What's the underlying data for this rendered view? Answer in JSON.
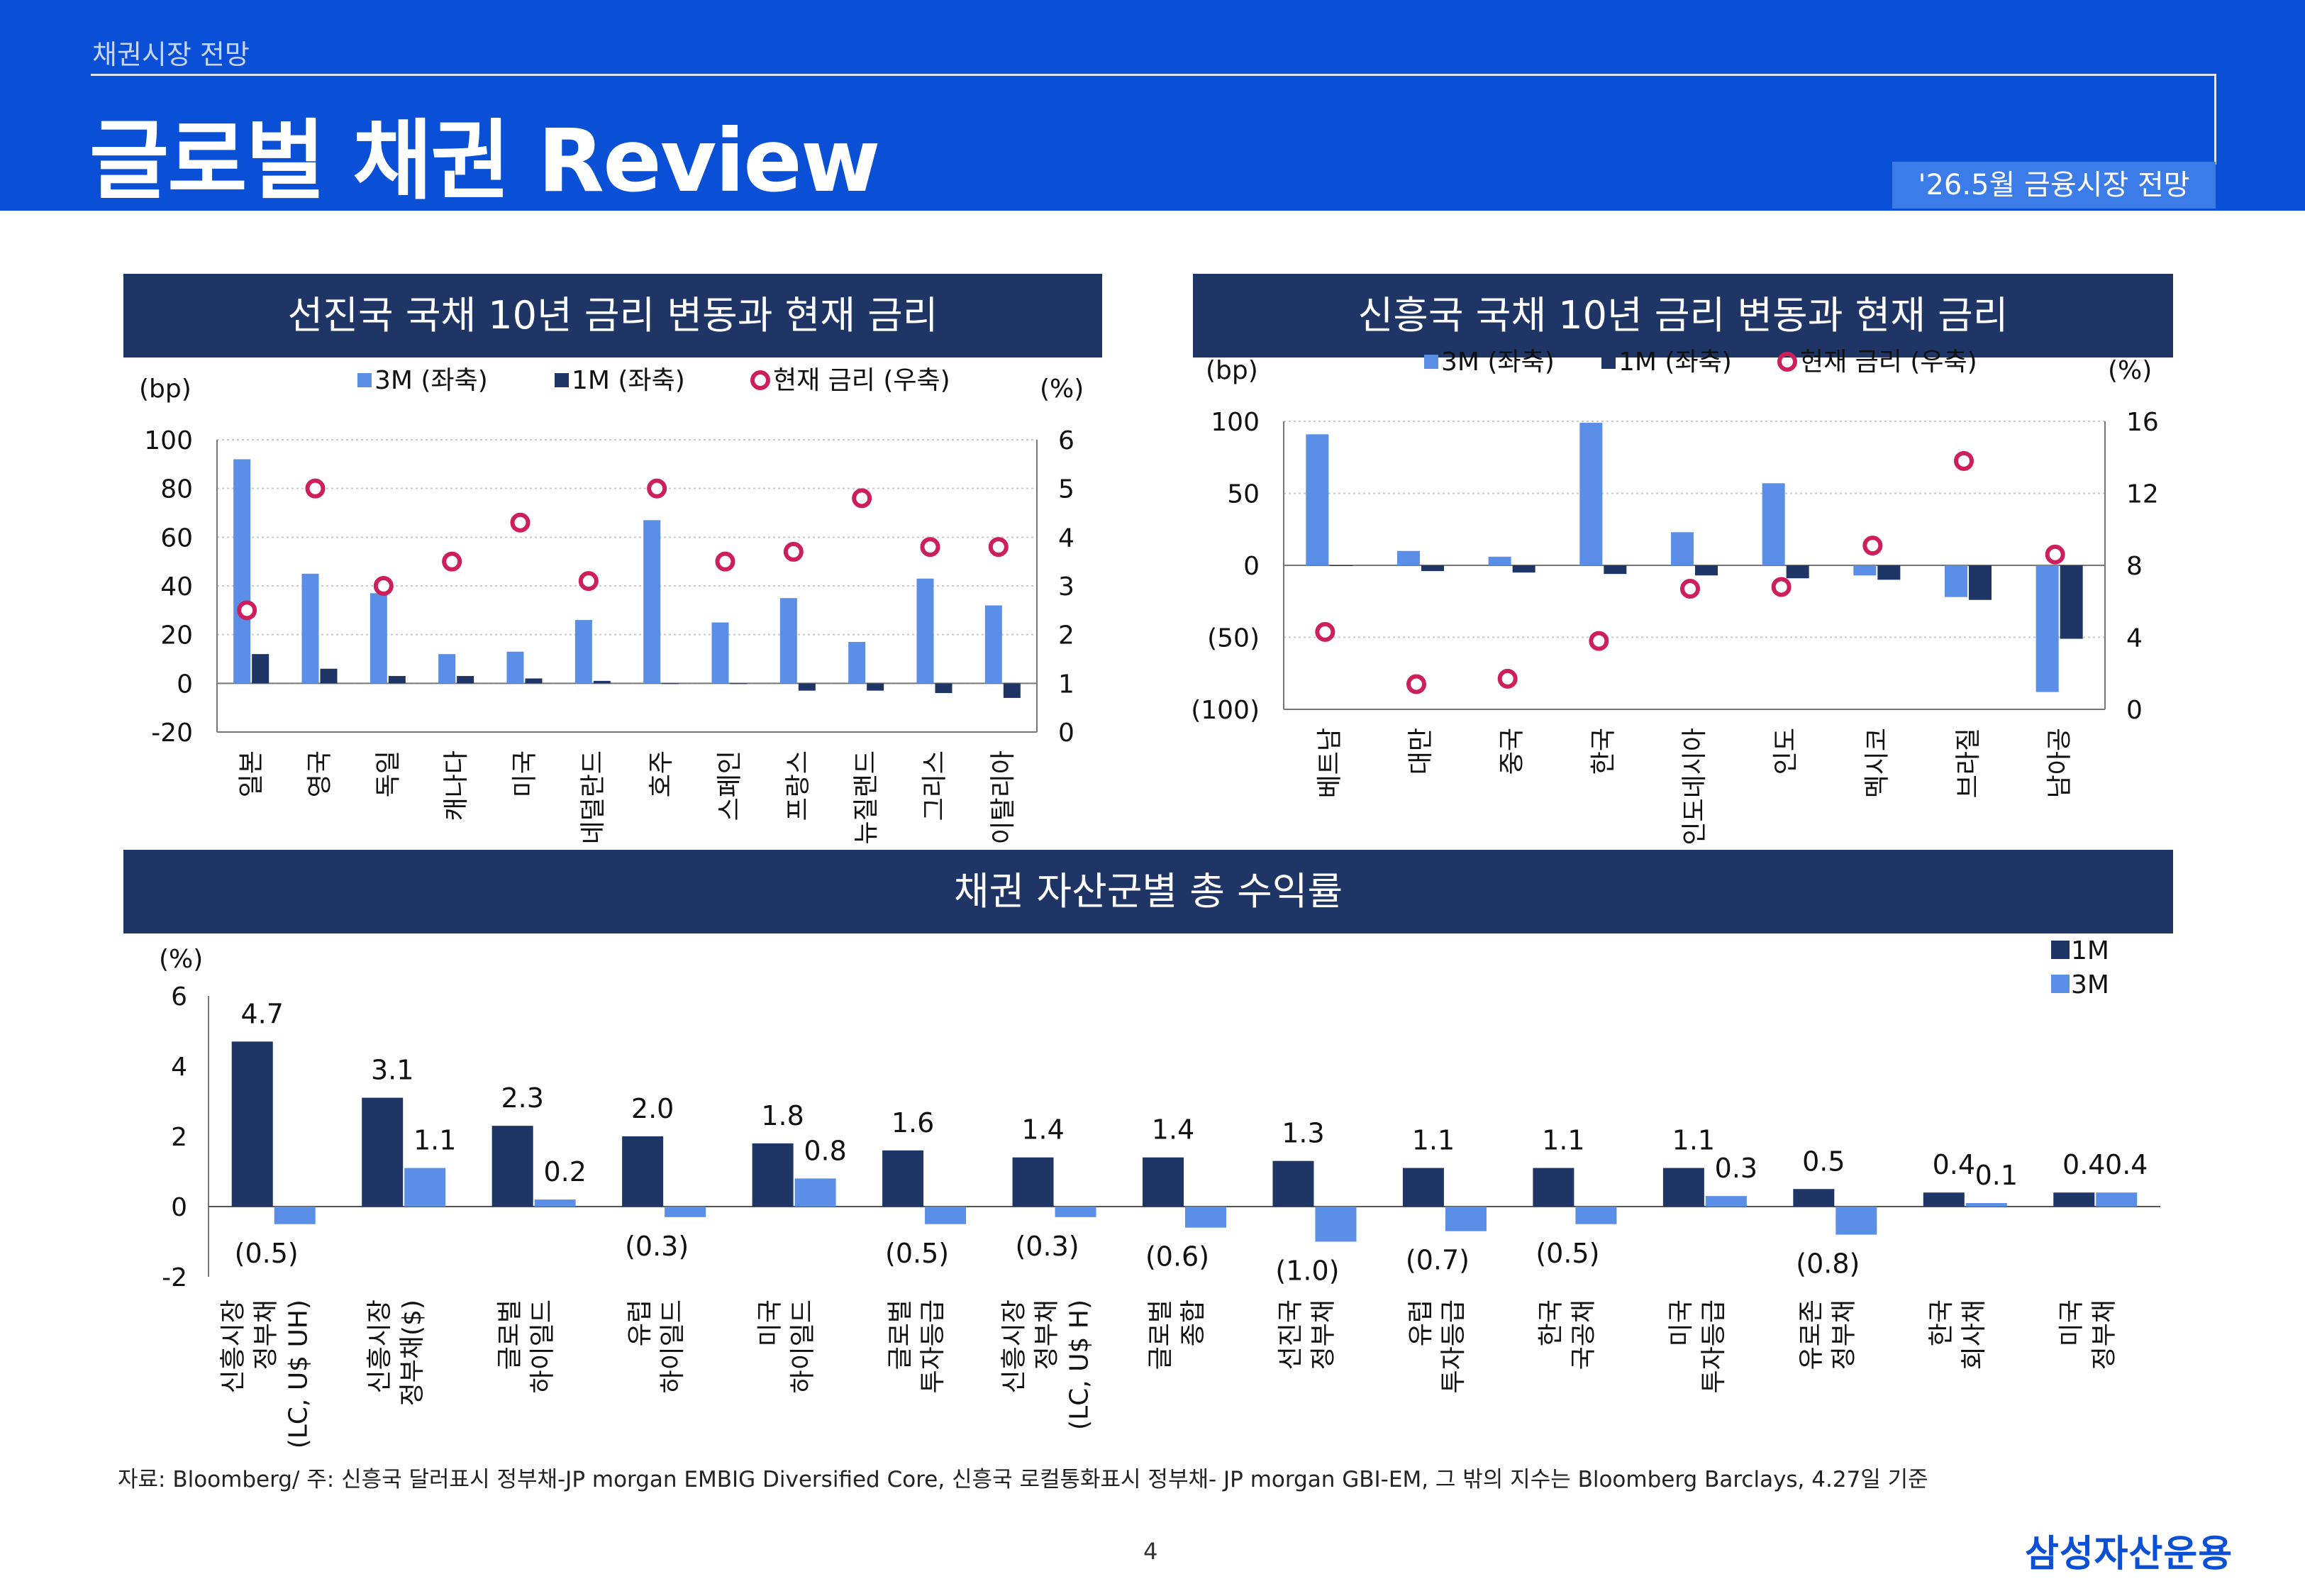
{
  "header": {
    "section": "채권시장 전망",
    "title": "글로벌 채권 Review",
    "badge": "'26.5월 금융시장 전망"
  },
  "colors": {
    "primary": "#0a50d6",
    "navy": "#1f3566",
    "bar_light": "#5b8ee6",
    "bar_dark": "#1f3566",
    "marker": "#cc1f5c"
  },
  "chart_data": [
    {
      "type": "bar",
      "title": "선진국 국채 10년 금리 변동과 현재 금리",
      "ylabel_left": "(bp)",
      "ylabel_right": "(%)",
      "ylim_left": [
        -20,
        100
      ],
      "yticks_left": [
        "100",
        "80",
        "60",
        "40",
        "20",
        "0",
        "-20"
      ],
      "ylim_right": [
        0,
        6
      ],
      "yticks_right": [
        "6",
        "5",
        "4",
        "3",
        "2",
        "1",
        "0"
      ],
      "legend": [
        "3M (좌축)",
        "1M (좌축)",
        "현재 금리 (우축)"
      ],
      "categories": [
        "일본",
        "영국",
        "독일",
        "캐나다",
        "미국",
        "네덜란드",
        "호주",
        "스페인",
        "프랑스",
        "뉴질랜드",
        "그리스",
        "이탈리아"
      ],
      "series": [
        {
          "name": "3M (좌축)",
          "values": [
            92,
            45,
            37,
            12,
            13,
            26,
            67,
            25,
            35,
            17,
            43,
            32
          ]
        },
        {
          "name": "1M (좌축)",
          "values": [
            12,
            6,
            3,
            3,
            2,
            1,
            0,
            0,
            -3,
            -3,
            -4,
            -6
          ]
        },
        {
          "name": "현재 금리 (우축)",
          "values": [
            2.5,
            5.0,
            3.0,
            3.5,
            4.3,
            3.1,
            5.0,
            3.5,
            3.7,
            4.8,
            3.8,
            3.8
          ]
        }
      ]
    },
    {
      "type": "bar",
      "title": "신흥국 국채 10년 금리 변동과 현재 금리",
      "ylabel_left": "(bp)",
      "ylabel_right": "(%)",
      "ylim_left": [
        -100,
        100
      ],
      "yticks_left": [
        "100",
        "50",
        "0",
        "(50)",
        "(100)"
      ],
      "ylim_right": [
        0,
        16
      ],
      "yticks_right": [
        "16",
        "12",
        "8",
        "4",
        "0"
      ],
      "legend": [
        "3M (좌축)",
        "1M (좌축)",
        "현재 금리 (우축)"
      ],
      "categories": [
        "베트남",
        "대만",
        "중국",
        "한국",
        "인도네시아",
        "인도",
        "멕시코",
        "브라질",
        "남아공"
      ],
      "series": [
        {
          "name": "3M (좌축)",
          "values": [
            91,
            10,
            6,
            99,
            23,
            57,
            -7,
            -22,
            -88
          ]
        },
        {
          "name": "1M (좌축)",
          "values": [
            0,
            -4,
            -5,
            -6,
            -7,
            -9,
            -10,
            -24,
            -51
          ]
        },
        {
          "name": "현재 금리 (우축)",
          "values": [
            4.3,
            1.4,
            1.7,
            3.8,
            6.7,
            6.8,
            9.1,
            13.8,
            8.6
          ]
        }
      ]
    },
    {
      "type": "bar",
      "title": "채권 자산군별 총 수익률",
      "ylabel": "(%)",
      "ylim": [
        -2,
        6
      ],
      "yticks": [
        "6",
        "4",
        "2",
        "0",
        "-2"
      ],
      "legend": [
        "1M",
        "3M"
      ],
      "categories": [
        [
          "신흥시장",
          "정부채",
          "(LC, U$ UH)"
        ],
        [
          "신흥시장",
          "정부채($)"
        ],
        [
          "글로벌",
          "하이일드"
        ],
        [
          "유럽",
          "하이일드"
        ],
        [
          "미국",
          "하이일드"
        ],
        [
          "글로벌",
          "투자등급"
        ],
        [
          "신흥시장",
          "정부채",
          "(LC, U$ H)"
        ],
        [
          "글로벌",
          "종합"
        ],
        [
          "선진국",
          "정부채"
        ],
        [
          "유럽",
          "투자등급"
        ],
        [
          "한국",
          "국공채"
        ],
        [
          "미국",
          "투자등급"
        ],
        [
          "유로존",
          "정부채"
        ],
        [
          "한국",
          "회사채"
        ],
        [
          "미국",
          "정부채"
        ]
      ],
      "series": [
        {
          "name": "1M",
          "values": [
            4.7,
            3.1,
            2.3,
            2.0,
            1.8,
            1.6,
            1.4,
            1.4,
            1.3,
            1.1,
            1.1,
            1.1,
            0.5,
            0.4,
            0.4
          ],
          "labels": [
            "4.7",
            "3.1",
            "2.3",
            "2.0",
            "1.8",
            "1.6",
            "1.4",
            "1.4",
            "1.3",
            "1.1",
            "1.1",
            "1.1",
            "0.5",
            "0.4",
            "0.4"
          ]
        },
        {
          "name": "3M",
          "values": [
            -0.5,
            1.1,
            0.2,
            -0.3,
            0.8,
            -0.5,
            -0.3,
            -0.6,
            -1.0,
            -0.7,
            -0.5,
            0.3,
            -0.8,
            0.1,
            0.4
          ],
          "labels": [
            "(0.5)",
            "1.1",
            "0.2",
            "(0.3)",
            "0.8",
            "(0.5)",
            "(0.3)",
            "(0.6)",
            "(1.0)",
            "(0.7)",
            "(0.5)",
            "0.3",
            "(0.8)",
            "0.1",
            "0.4"
          ]
        }
      ]
    }
  ],
  "footnote": "자료: Bloomberg/ 주: 신흥국 달러표시 정부채-JP morgan EMBIG Diversified Core, 신흥국 로컬통화표시 정부채- JP morgan GBI-EM, 그 밖의 지수는 Bloomberg Barclays, 4.27일 기준",
  "page_number": "4",
  "logo": "삼성자산운용"
}
